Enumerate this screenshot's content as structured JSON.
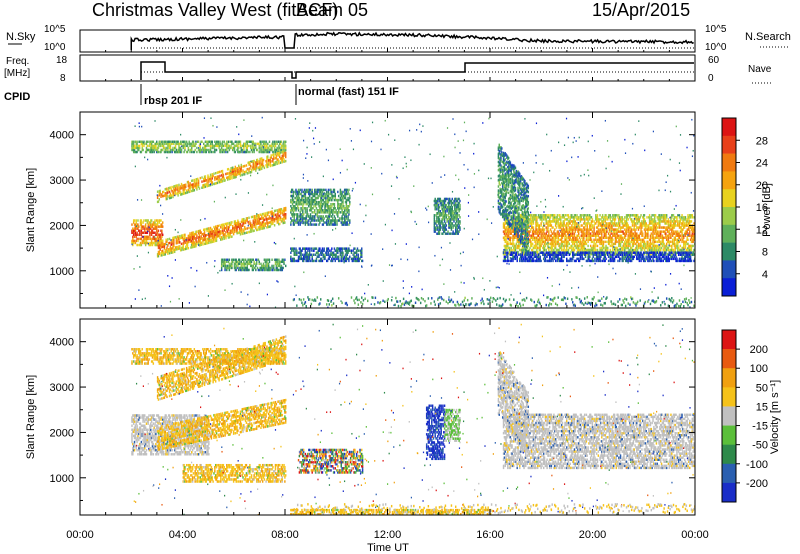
{
  "header": {
    "title": "Christmas Valley West (fitACF)",
    "beam": "Beam 05",
    "date": "15/Apr/2015"
  },
  "top_panels": {
    "nsky_label": "N.Sky",
    "nsky_ticks": [
      "10^5",
      "10^0"
    ],
    "nsearch_label": "N.Search",
    "nsearch_ticks": [
      "10^5",
      "10^0"
    ],
    "freq_label": [
      "Freq.",
      "[MHz]"
    ],
    "freq_ticks": [
      "18",
      "8"
    ],
    "nave_label": "Nave",
    "nave_ticks": [
      "60",
      "0"
    ],
    "cpid_label": "CPID",
    "cpid_modes": [
      {
        "start_hour": 2.0,
        "label": "rbsp 201 IF"
      },
      {
        "start_hour": 8.2,
        "label": "normal (fast) 151 IF"
      }
    ]
  },
  "chart_data": [
    {
      "type": "heatmap",
      "name": "power",
      "ylabel": "Slant Range [km]",
      "yticks": [
        "1000",
        "2000",
        "3000",
        "4000"
      ],
      "ylim": [
        180,
        4500
      ],
      "xlim": [
        0,
        24
      ],
      "colorbar": {
        "label": "Power [dB]",
        "ticks": [
          "4",
          "8",
          "12",
          "16",
          "20",
          "24",
          "28"
        ],
        "colors": [
          "#0a1fd6",
          "#1f4fb8",
          "#2d8a66",
          "#5fb05a",
          "#9ccc4a",
          "#e8d21f",
          "#f5a30f",
          "#f07a10",
          "#e8401a",
          "#dc1414"
        ]
      },
      "echo_regions": [
        {
          "t0": 2.0,
          "t1": 8.0,
          "r0": 3600,
          "r1": 3850,
          "slope": 0,
          "level": 0.5
        },
        {
          "t0": 3.0,
          "t1": 8.0,
          "r0": 2500,
          "r1": 2750,
          "slope": 180,
          "level": 0.8
        },
        {
          "t0": 2.0,
          "t1": 3.2,
          "r0": 1550,
          "r1": 2100,
          "slope": 0,
          "level": 0.95
        },
        {
          "t0": 3.0,
          "t1": 8.0,
          "r0": 1300,
          "r1": 1650,
          "slope": 150,
          "level": 0.85
        },
        {
          "t0": 5.5,
          "t1": 8.0,
          "r0": 1000,
          "r1": 1250,
          "slope": 0,
          "level": 0.4
        },
        {
          "t0": 8.2,
          "t1": 11.0,
          "r0": 1200,
          "r1": 1500,
          "slope": 0,
          "level": 0.2
        },
        {
          "t0": 8.2,
          "t1": 10.5,
          "r0": 2000,
          "r1": 2800,
          "slope": 0,
          "level": 0.35
        },
        {
          "t0": 13.8,
          "t1": 14.8,
          "r0": 1800,
          "r1": 2600,
          "slope": 0,
          "level": 0.3
        },
        {
          "t0": 16.5,
          "t1": 24.0,
          "r0": 1350,
          "r1": 2250,
          "slope": 0,
          "level": 0.75
        },
        {
          "t0": 16.3,
          "t1": 17.5,
          "r0": 2300,
          "r1": 3800,
          "slope": -800,
          "level": 0.3
        },
        {
          "t0": 16.5,
          "t1": 24.0,
          "r0": 1200,
          "r1": 1400,
          "slope": 0,
          "level": 0.1
        }
      ]
    },
    {
      "type": "heatmap",
      "name": "velocity",
      "ylabel": "Slant Range [km]",
      "xlabel": "Time UT",
      "yticks": [
        "1000",
        "2000",
        "3000",
        "4000"
      ],
      "xticks": [
        "00:00",
        "04:00",
        "08:00",
        "12:00",
        "16:00",
        "20:00",
        "00:00"
      ],
      "ylim": [
        180,
        4500
      ],
      "xlim": [
        0,
        24
      ],
      "colorbar": {
        "label": "Velocity [m s⁻¹]",
        "ticks": [
          "200",
          "100",
          "50",
          "15",
          "-15",
          "-50",
          "-100",
          "-200"
        ],
        "colors": [
          "#1a2ec8",
          "#2a5fb0",
          "#2e8a4a",
          "#5bbf3a",
          "#c0c0c0",
          "#f5c21a",
          "#f0a010",
          "#e85a10",
          "#dc1414"
        ]
      },
      "echo_regions": [
        {
          "t0": 2.0,
          "t1": 8.0,
          "r0": 3500,
          "r1": 3850,
          "slope": 0,
          "class": "orange"
        },
        {
          "t0": 3.0,
          "t1": 8.0,
          "r0": 2700,
          "r1": 3200,
          "slope": 180,
          "class": "orange"
        },
        {
          "t0": 2.0,
          "t1": 5.0,
          "r0": 1500,
          "r1": 2400,
          "slope": 0,
          "class": "gray"
        },
        {
          "t0": 3.0,
          "t1": 8.0,
          "r0": 1600,
          "r1": 2100,
          "slope": 120,
          "class": "orange"
        },
        {
          "t0": 4.0,
          "t1": 8.0,
          "r0": 900,
          "r1": 1300,
          "slope": 0,
          "class": "orange"
        },
        {
          "t0": 8.5,
          "t1": 11.0,
          "r0": 1100,
          "r1": 1600,
          "slope": 0,
          "class": "mixed"
        },
        {
          "t0": 13.5,
          "t1": 14.2,
          "r0": 1400,
          "r1": 2600,
          "slope": 0,
          "class": "blue"
        },
        {
          "t0": 14.2,
          "t1": 14.8,
          "r0": 1800,
          "r1": 2500,
          "slope": 0,
          "class": "green"
        },
        {
          "t0": 16.5,
          "t1": 24.0,
          "r0": 1200,
          "r1": 2400,
          "slope": 0,
          "class": "gray"
        },
        {
          "t0": 16.3,
          "t1": 17.5,
          "r0": 2400,
          "r1": 3800,
          "slope": -800,
          "class": "gray"
        },
        {
          "t0": 8.2,
          "t1": 16.0,
          "r0": 180,
          "r1": 300,
          "slope": 0,
          "class": "orange"
        }
      ]
    }
  ]
}
